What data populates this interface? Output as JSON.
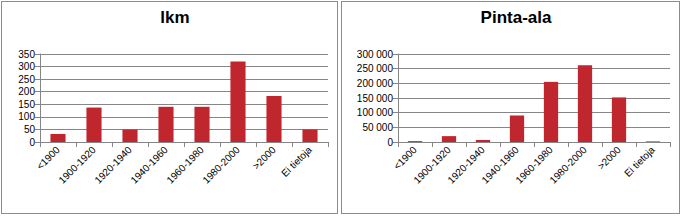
{
  "chart_data": [
    {
      "type": "bar",
      "title": "lkm",
      "categories": [
        "<1900",
        "1900-1920",
        "1920-1940",
        "1940-1960",
        "1960-1980",
        "1980-2000",
        ">2000",
        "Ei tietoja"
      ],
      "values": [
        32,
        137,
        50,
        140,
        140,
        320,
        183,
        50
      ],
      "color": "#c0262d",
      "ylim": [
        0,
        350
      ],
      "yticks": [
        0,
        50,
        100,
        150,
        200,
        250,
        300,
        350
      ],
      "grid": true
    },
    {
      "type": "bar",
      "title": "Pinta-ala",
      "categories": [
        "<1900",
        "1900-1920",
        "1920-1940",
        "1940-1960",
        "1960-1980",
        "1980-2000",
        ">2000",
        "Ei tietoja"
      ],
      "values": [
        3000,
        20000,
        7000,
        90000,
        205000,
        262000,
        152000,
        2000
      ],
      "color": "#c0262d",
      "ylim": [
        0,
        300000
      ],
      "yticks": [
        0,
        {
          "value": 50000,
          "label": "50 000"
        },
        {
          "value": 100000,
          "label": "100 000"
        },
        {
          "value": 150000,
          "label": "150 000"
        },
        {
          "value": 200000,
          "label": "200 000"
        },
        {
          "value": 250000,
          "label": "250 000"
        },
        {
          "value": 300000,
          "label": "300 000"
        }
      ],
      "grid": true
    }
  ]
}
